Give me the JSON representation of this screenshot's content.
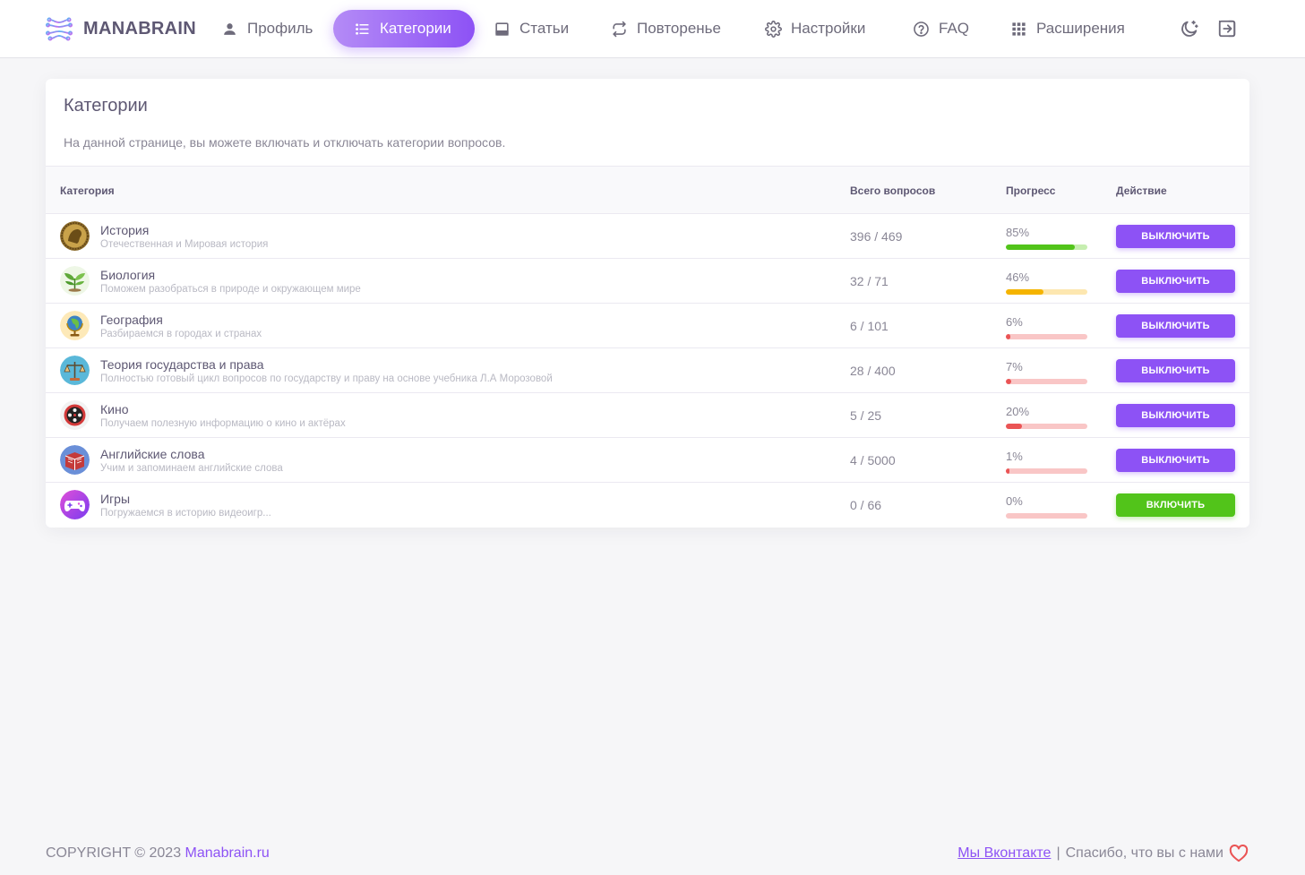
{
  "brand": {
    "name": "MANABRAIN"
  },
  "nav": {
    "items": [
      {
        "label": "Профиль",
        "icon": "user-icon"
      },
      {
        "label": "Категории",
        "icon": "list-icon",
        "active": true
      },
      {
        "label": "Статьи",
        "icon": "article-icon"
      },
      {
        "label": "Повторенье",
        "icon": "repeat-icon"
      },
      {
        "label": "Настройки",
        "icon": "gear-icon"
      },
      {
        "label": "FAQ",
        "icon": "help-icon"
      },
      {
        "label": "Расширения",
        "icon": "grid-icon"
      }
    ],
    "theme_icon": "moon-icon",
    "logout_icon": "logout-icon"
  },
  "card": {
    "title": "Категории",
    "description": "На данной странице, вы можете включать и отключать категории вопросов.",
    "columns": {
      "category": "Категория",
      "total": "Всего вопросов",
      "progress": "Прогресс",
      "action": "Действие"
    },
    "rows": [
      {
        "name": "История",
        "subtitle": "Отечественная и Мировая история",
        "count": "396 / 469",
        "percent": "85%",
        "progress": 0.85,
        "level": "high",
        "action": "выключить",
        "enabled": true,
        "icon": "history-coin-icon"
      },
      {
        "name": "Биология",
        "subtitle": "Поможем разобраться в природе и окружающем мире",
        "count": "32 / 71",
        "percent": "46%",
        "progress": 0.46,
        "level": "mid",
        "action": "выключить",
        "enabled": true,
        "icon": "plant-icon"
      },
      {
        "name": "География",
        "subtitle": "Разбираемся в городах и странах",
        "count": "6 / 101",
        "percent": "6%",
        "progress": 0.06,
        "level": "low",
        "action": "выключить",
        "enabled": true,
        "icon": "globe-icon"
      },
      {
        "name": "Теория государства и права",
        "subtitle": "Полностью готовый цикл вопросов по государству и праву на основе учебника Л.А Морозовой",
        "count": "28 / 400",
        "percent": "7%",
        "progress": 0.07,
        "level": "low",
        "action": "выключить",
        "enabled": true,
        "icon": "scales-icon"
      },
      {
        "name": "Кино",
        "subtitle": "Получаем полезную информацию о кино и актёрах",
        "count": "5 / 25",
        "percent": "20%",
        "progress": 0.2,
        "level": "low",
        "action": "выключить",
        "enabled": true,
        "icon": "film-reel-icon"
      },
      {
        "name": "Английские слова",
        "subtitle": "Учим и запоминаем английские слова",
        "count": "4 / 5000",
        "percent": "1%",
        "progress": 0.01,
        "level": "low",
        "action": "выключить",
        "enabled": true,
        "icon": "book-icon"
      },
      {
        "name": "Игры",
        "subtitle": "Погружаемся в историю видеоигр...",
        "count": "0 / 66",
        "percent": "0%",
        "progress": 0.0,
        "level": "low",
        "action": "включить",
        "enabled": false,
        "icon": "gamepad-icon"
      }
    ]
  },
  "footer": {
    "copyright": "COPYRIGHT © 2023 ",
    "site_link": "Manabrain.ru",
    "vk_link": "Мы Вконтакте",
    "separator": "|",
    "thanks": "Спасибо, что вы с нами",
    "heart_icon": "heart-icon"
  },
  "colors": {
    "accent": "#8d52f5",
    "success": "#52c41a",
    "warning": "#f5b400",
    "danger": "#ea5455"
  }
}
